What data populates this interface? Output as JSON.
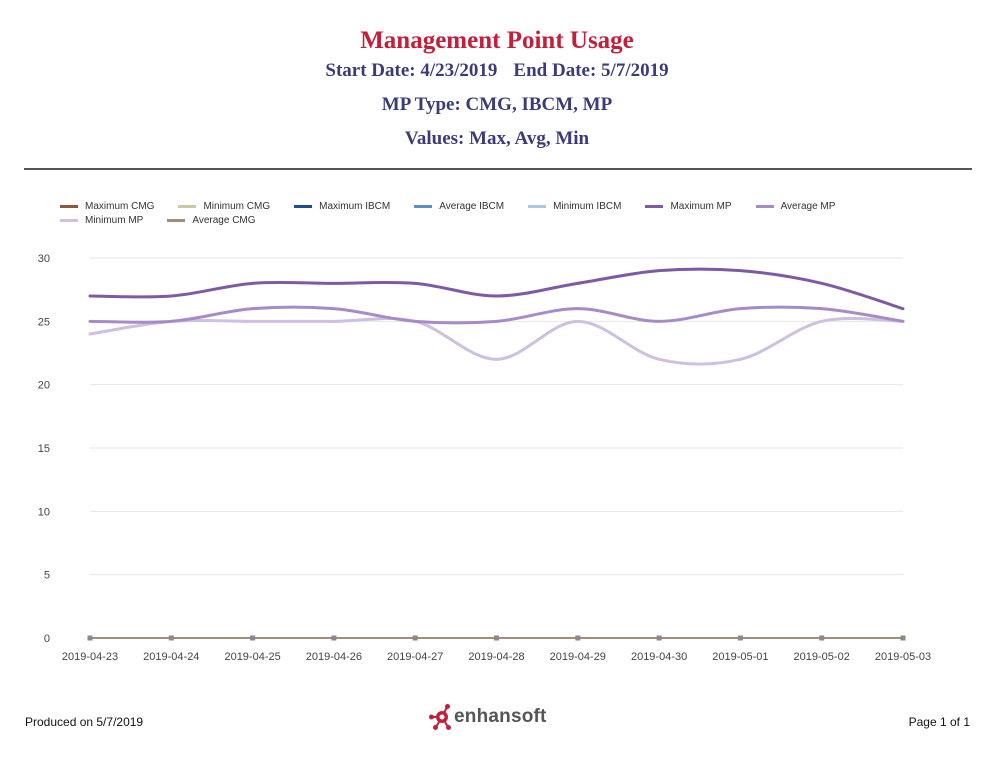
{
  "header": {
    "title": "Management Point Usage",
    "start_date": "Start Date: 4/23/2019",
    "end_date": "End Date: 5/7/2019",
    "mp_type": "MP Type: CMG, IBCM, MP",
    "values": "Values: Max, Avg, Min"
  },
  "footer": {
    "produced_on": "Produced on 5/7/2019",
    "page": "Page 1 of 1",
    "brand": "enhansoft",
    "brand_icon": "molecule-e-icon",
    "brand_color": "#c41e3a"
  },
  "chart_data": {
    "type": "line",
    "categories": [
      "2019-04-23",
      "2019-04-24",
      "2019-04-25",
      "2019-04-26",
      "2019-04-27",
      "2019-04-28",
      "2019-04-29",
      "2019-04-30",
      "2019-05-01",
      "2019-05-02",
      "2019-05-03"
    ],
    "ylim": [
      0,
      30
    ],
    "yticks": [
      0,
      5,
      10,
      15,
      20,
      25,
      30
    ],
    "grid": true,
    "legend_position": "top",
    "series": [
      {
        "name": "Maximum CMG",
        "color": "#8b5a3c",
        "values": [
          0,
          0,
          0,
          0,
          0,
          0,
          0,
          0,
          0,
          0,
          0
        ]
      },
      {
        "name": "Minimum CMG",
        "color": "#c9c9a6",
        "values": [
          0,
          0,
          0,
          0,
          0,
          0,
          0,
          0,
          0,
          0,
          0
        ]
      },
      {
        "name": "Maximum IBCM",
        "color": "#1f4e8c",
        "values": [
          0,
          0,
          0,
          0,
          0,
          0,
          0,
          0,
          0,
          0,
          0
        ]
      },
      {
        "name": "Average IBCM",
        "color": "#5b8fc7",
        "values": [
          0,
          0,
          0,
          0,
          0,
          0,
          0,
          0,
          0,
          0,
          0
        ]
      },
      {
        "name": "Minimum IBCM",
        "color": "#a9c6e3",
        "values": [
          0,
          0,
          0,
          0,
          0,
          0,
          0,
          0,
          0,
          0,
          0
        ]
      },
      {
        "name": "Maximum MP",
        "color": "#7e5aa6",
        "values": [
          27,
          27,
          28,
          28,
          28,
          27,
          28,
          29,
          29,
          28,
          26
        ]
      },
      {
        "name": "Average MP",
        "color": "#a78bc9",
        "values": [
          25,
          25,
          26,
          26,
          25,
          25,
          26,
          25,
          26,
          26,
          25
        ]
      },
      {
        "name": "Minimum MP",
        "color": "#cdc0e0",
        "values": [
          24,
          25,
          25,
          25,
          25,
          22,
          25,
          22,
          22,
          25,
          25
        ]
      },
      {
        "name": "Average CMG",
        "color": "#a08e7a",
        "values": [
          0,
          0,
          0,
          0,
          0,
          0,
          0,
          0,
          0,
          0,
          0
        ]
      }
    ]
  }
}
